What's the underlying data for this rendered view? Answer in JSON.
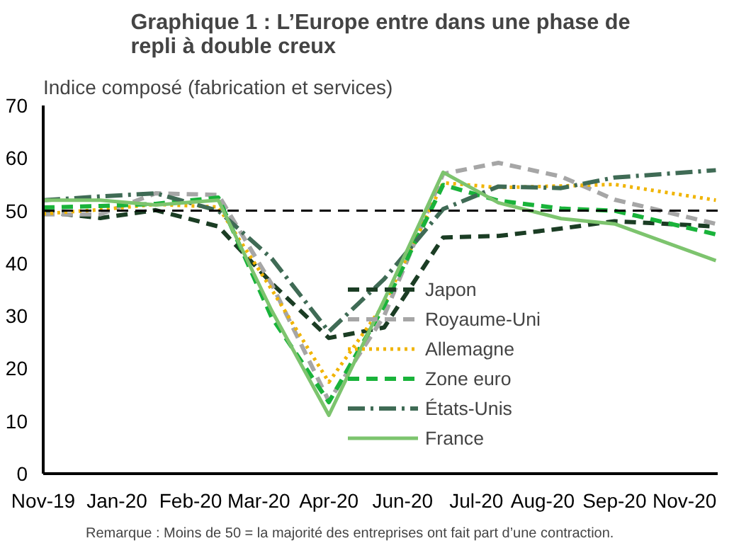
{
  "chart_data": {
    "type": "line",
    "title": "Graphique 1 : L’Europe entre dans une phase de\nrepli à double creux",
    "ylabel": "Indice composé (fabrication et services)",
    "x": [
      "2019-11-23",
      "2019-12-24",
      "2020-01-23",
      "2020-02-26",
      "2020-03-26",
      "2020-04-26",
      "2020-05-26",
      "2020-06-27",
      "2020-07-27",
      "2020-08-30",
      "2020-09-28",
      "2020-11-22"
    ],
    "series": [
      {
        "name": "Japon",
        "color": "#1b3d24",
        "line_style": "dashed",
        "values": [
          49.8,
          48.6,
          50.1,
          47.0,
          36.2,
          25.8,
          27.8,
          44.9,
          45.2,
          46.6,
          48.0,
          47.0
        ]
      },
      {
        "name": "Royaume-Uni",
        "color": "#a6a6a6",
        "line_style": "dashed",
        "values": [
          49.3,
          49.3,
          53.3,
          53.0,
          36.0,
          13.8,
          30.0,
          57.0,
          59.1,
          56.5,
          52.1,
          47.5
        ]
      },
      {
        "name": "Allemagne",
        "color": "#f0b400",
        "line_style": "dotted",
        "values": [
          49.4,
          50.2,
          51.2,
          50.7,
          35.0,
          17.4,
          32.3,
          55.3,
          54.4,
          54.7,
          55.0,
          52.0
        ]
      },
      {
        "name": "Zone euro",
        "color": "#19b33a",
        "line_style": "dashed",
        "values": [
          50.6,
          50.9,
          51.3,
          52.5,
          29.7,
          13.6,
          31.9,
          54.9,
          51.9,
          50.4,
          50.0,
          45.5
        ]
      },
      {
        "name": "États-Unis",
        "color": "#3f6b55",
        "line_style": "dashdot",
        "values": [
          52.0,
          52.7,
          53.3,
          50.0,
          40.9,
          27.0,
          37.0,
          50.3,
          54.6,
          54.3,
          56.3,
          57.7
        ]
      },
      {
        "name": "France",
        "color": "#7dc46e",
        "line_style": "solid",
        "values": [
          52.0,
          52.0,
          51.1,
          52.0,
          31.0,
          11.1,
          33.0,
          57.3,
          51.5,
          48.5,
          47.5,
          40.5
        ]
      }
    ],
    "xlim": [
      "2019-11-23",
      "2020-11-23"
    ],
    "xticks": [
      {
        "value": "2019-11-23",
        "label": "Nov-19"
      },
      {
        "value": "2020-01-02",
        "label": "Jan-20"
      },
      {
        "value": "2020-02-11",
        "label": "Feb-20"
      },
      {
        "value": "2020-03-19",
        "label": "Mar-20"
      },
      {
        "value": "2020-04-26",
        "label": "Apr-20"
      },
      {
        "value": "2020-06-05",
        "label": "Jun-20"
      },
      {
        "value": "2020-07-15",
        "label": "Jul-20"
      },
      {
        "value": "2020-08-20",
        "label": "Aug-20"
      },
      {
        "value": "2020-09-28",
        "label": "Sep-20"
      },
      {
        "value": "2020-11-05",
        "label": "Nov-20"
      }
    ],
    "ylim": [
      0,
      70
    ],
    "yticks": [
      0,
      10,
      20,
      30,
      40,
      50,
      60,
      70
    ],
    "ref_lines": [
      {
        "axis": "y",
        "value": 50,
        "color": "#000000",
        "line_style": "dashed"
      }
    ],
    "grid": false,
    "legend": "right",
    "annotations": [
      "Remarque  : Moins de 50 = la majorité  des entreprises ont fait part d’une contraction."
    ]
  }
}
